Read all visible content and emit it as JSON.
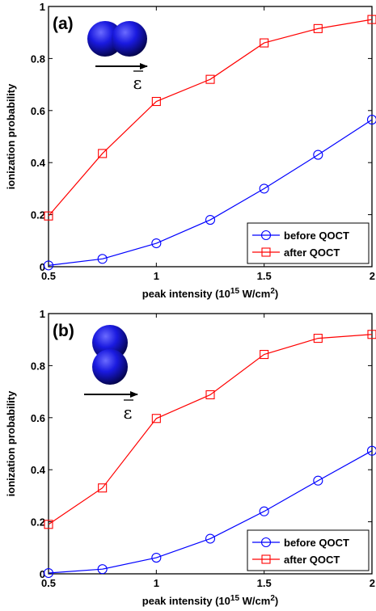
{
  "colors": {
    "before": "#0000ff",
    "after": "#ff0000",
    "axis": "#000000",
    "sphere": "#1414c8"
  },
  "chart_data": [
    {
      "type": "line",
      "panel_label": "(a)",
      "field_symbol": "ε",
      "xlabel": "peak intensity (10",
      "xlabel_sup": "15",
      "xlabel_mid": " W/cm",
      "xlabel_sup2": "2",
      "xlabel_end": ")",
      "ylabel": "ionization probability",
      "xlim": [
        0.5,
        2
      ],
      "ylim": [
        0,
        1
      ],
      "xticks": [
        "0.5",
        "1",
        "1.5",
        "2"
      ],
      "yticks": [
        "0",
        "0.2",
        "0.4",
        "0.6",
        "0.8",
        "1"
      ],
      "x": [
        0.5,
        0.75,
        1.0,
        1.25,
        1.5,
        1.75,
        2.0
      ],
      "series": [
        {
          "name": "before QOCT",
          "marker": "circle",
          "values": [
            0.005,
            0.03,
            0.09,
            0.18,
            0.3,
            0.43,
            0.565
          ]
        },
        {
          "name": "after QOCT",
          "marker": "square",
          "values": [
            0.195,
            0.435,
            0.635,
            0.72,
            0.86,
            0.915,
            0.95
          ]
        }
      ],
      "legend": "bottom-right",
      "molecule": "horizontal"
    },
    {
      "type": "line",
      "panel_label": "(b)",
      "field_symbol": "ε",
      "xlabel": "peak intensity (10",
      "xlabel_sup": "15",
      "xlabel_mid": " W/cm",
      "xlabel_sup2": "2",
      "xlabel_end": ")",
      "ylabel": "ionization probability",
      "xlim": [
        0.5,
        2
      ],
      "ylim": [
        0,
        1
      ],
      "xticks": [
        "0.5",
        "1",
        "1.5",
        "2"
      ],
      "yticks": [
        "0",
        "0.2",
        "0.4",
        "0.6",
        "0.8",
        "1"
      ],
      "x": [
        0.5,
        0.75,
        1.0,
        1.25,
        1.5,
        1.75,
        2.0
      ],
      "series": [
        {
          "name": "before QOCT",
          "marker": "circle",
          "values": [
            0.003,
            0.018,
            0.062,
            0.135,
            0.24,
            0.358,
            0.473
          ]
        },
        {
          "name": "after QOCT",
          "marker": "square",
          "values": [
            0.19,
            0.33,
            0.597,
            0.688,
            0.843,
            0.905,
            0.92
          ]
        }
      ],
      "legend": "bottom-right",
      "molecule": "vertical"
    }
  ]
}
